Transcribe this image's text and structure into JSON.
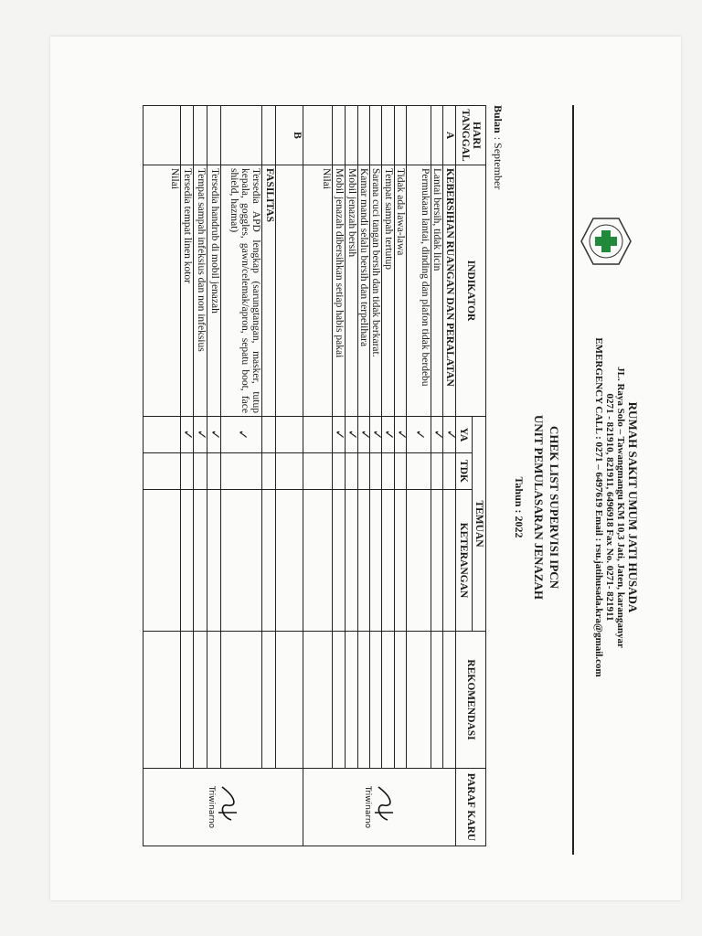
{
  "header": {
    "hospital_name": "RUMAH SAKIT UMUM JATI HUSADA",
    "address": "JL. Raya Solo – Tawangmangu KM 10,3 Jati, Jaten, karanganyar",
    "phone": "0271 - 821910, 821911, 6496918 Fax No. 0271- 821911",
    "emergency": "EMERGENCY CALL : 0271 – 6497619 Email : rsu.jatihusada.kra@gmail.com",
    "logo_text": "RUMAH SAKIT UMUM JATI HUSADA KARANGANYAR"
  },
  "title": {
    "line1": "CHEK LIST SUPERVISI IPCN",
    "line2": "UNIT PEMULASARAN JENAZAH",
    "year": "Tahun : 2022"
  },
  "month": {
    "label": "Bulan",
    "value": ": September"
  },
  "table": {
    "headers": {
      "day_date": "HARI TANGGAL",
      "indicator": "INDIKATOR",
      "findings": "TEMUAN",
      "yes": "YA",
      "no": "TDK",
      "notes": "KETERANGAN",
      "recommendation": "REKOMENDASI",
      "sign": "PARAF KARU"
    },
    "check_mark": "✓",
    "sections": [
      {
        "code": "A",
        "title": "KEBERSIHAN RUANGAN DAN PERALATAN",
        "title_checked": true,
        "items": [
          {
            "text": "Lantai bersih, tidak licin",
            "ya": true
          },
          {
            "text": "Permukaan lantai, dinding dan plafon tidak berdebu",
            "ya": true
          },
          {
            "text": "Tidak ada lawa-lawa",
            "ya": true
          },
          {
            "text": "Tempat sampah tertutup",
            "ya": true
          },
          {
            "text": "Sarana cuci tangan bersih dan tidak berkarat.",
            "ya": true
          },
          {
            "text": "Kamar mandi selalu bersih dan terpelihara",
            "ya": true
          },
          {
            "text": "Mobil jenazah bersih",
            "ya": true
          },
          {
            "text": "Mobil jenazah dibersihkan setiap habis pakai",
            "ya": true
          }
        ],
        "score_label": "Nilai",
        "signature": "Triwinarno"
      },
      {
        "code": "B",
        "title": "FASILITAS",
        "title_checked": false,
        "items": [
          {
            "text": "Tersedia APD lengkap (sarungtangan, masker, tutup kepala, goggles, gawn/celemak/apron, sepatu boot, face shield, hazmat)",
            "ya": true
          },
          {
            "text": "Tersedia handrub di mobil jenazah",
            "ya": true
          },
          {
            "text": "Tempat sampah infeksius dan non infeksius",
            "ya": true
          },
          {
            "text": "Tersedia tempat linen kotor",
            "ya": true
          }
        ],
        "score_label": "Nilai",
        "signature": "Triwinarno"
      }
    ]
  },
  "colors": {
    "ink": "#1a1a1a",
    "logo_green": "#1f8a3a"
  }
}
